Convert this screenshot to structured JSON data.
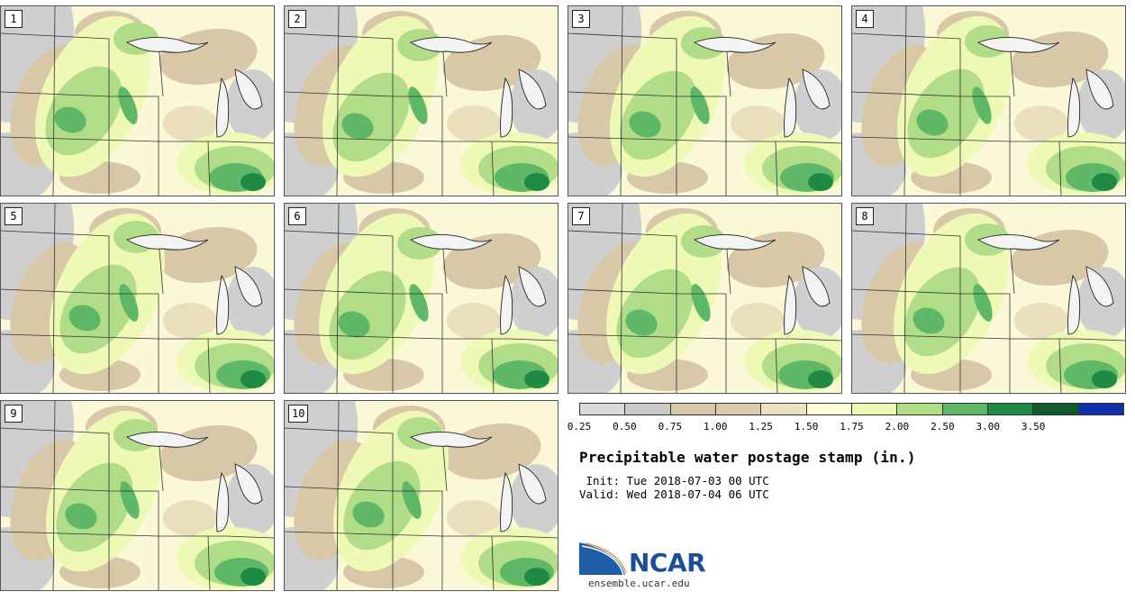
{
  "title": "Precipitable water postage stamp (in.)",
  "init_line": " Init: Tue 2018-07-03 00 UTC",
  "valid_line": "Valid: Wed 2018-07-04 06 UTC",
  "logo": {
    "name": "NCAR",
    "url": "ensemble.ucar.edu"
  },
  "colorbar": {
    "ticks": [
      "0.25",
      "0.50",
      "0.75",
      "1.00",
      "1.25",
      "1.50",
      "1.75",
      "2.00",
      "2.50",
      "3.00",
      "3.50"
    ],
    "colors": [
      "#d9d9d9",
      "#c9c9c9",
      "#d8c8a8",
      "#d9caa9",
      "#ece2bf",
      "#fefed6",
      "#eef9b5",
      "#b1dd88",
      "#5fb867",
      "#1e8a43",
      "#0f5a2f",
      "#1031a8"
    ]
  },
  "panels": [
    {
      "label": "1"
    },
    {
      "label": "2"
    },
    {
      "label": "3"
    },
    {
      "label": "4"
    },
    {
      "label": "5"
    },
    {
      "label": "6"
    },
    {
      "label": "7"
    },
    {
      "label": "8"
    },
    {
      "label": "9"
    },
    {
      "label": "10"
    }
  ]
}
